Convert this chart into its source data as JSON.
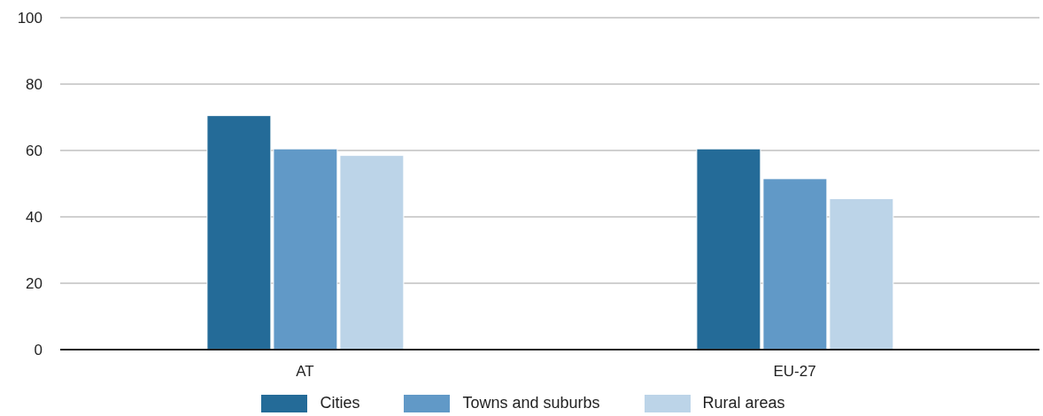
{
  "chart_data": {
    "type": "bar",
    "categories": [
      "AT",
      "EU-27"
    ],
    "series": [
      {
        "name": "Cities",
        "color": "#246b98",
        "values": [
          70.5,
          60.5
        ]
      },
      {
        "name": "Towns and suburbs",
        "color": "#6199c7",
        "values": [
          60.5,
          51.5
        ]
      },
      {
        "name": "Rural areas",
        "color": "#bcd4e8",
        "values": [
          58.5,
          45.5
        ]
      }
    ],
    "ylim": [
      0,
      100
    ],
    "yticks": [
      0,
      20,
      40,
      60,
      80,
      100
    ],
    "grid": "y",
    "legend": "bottom"
  }
}
